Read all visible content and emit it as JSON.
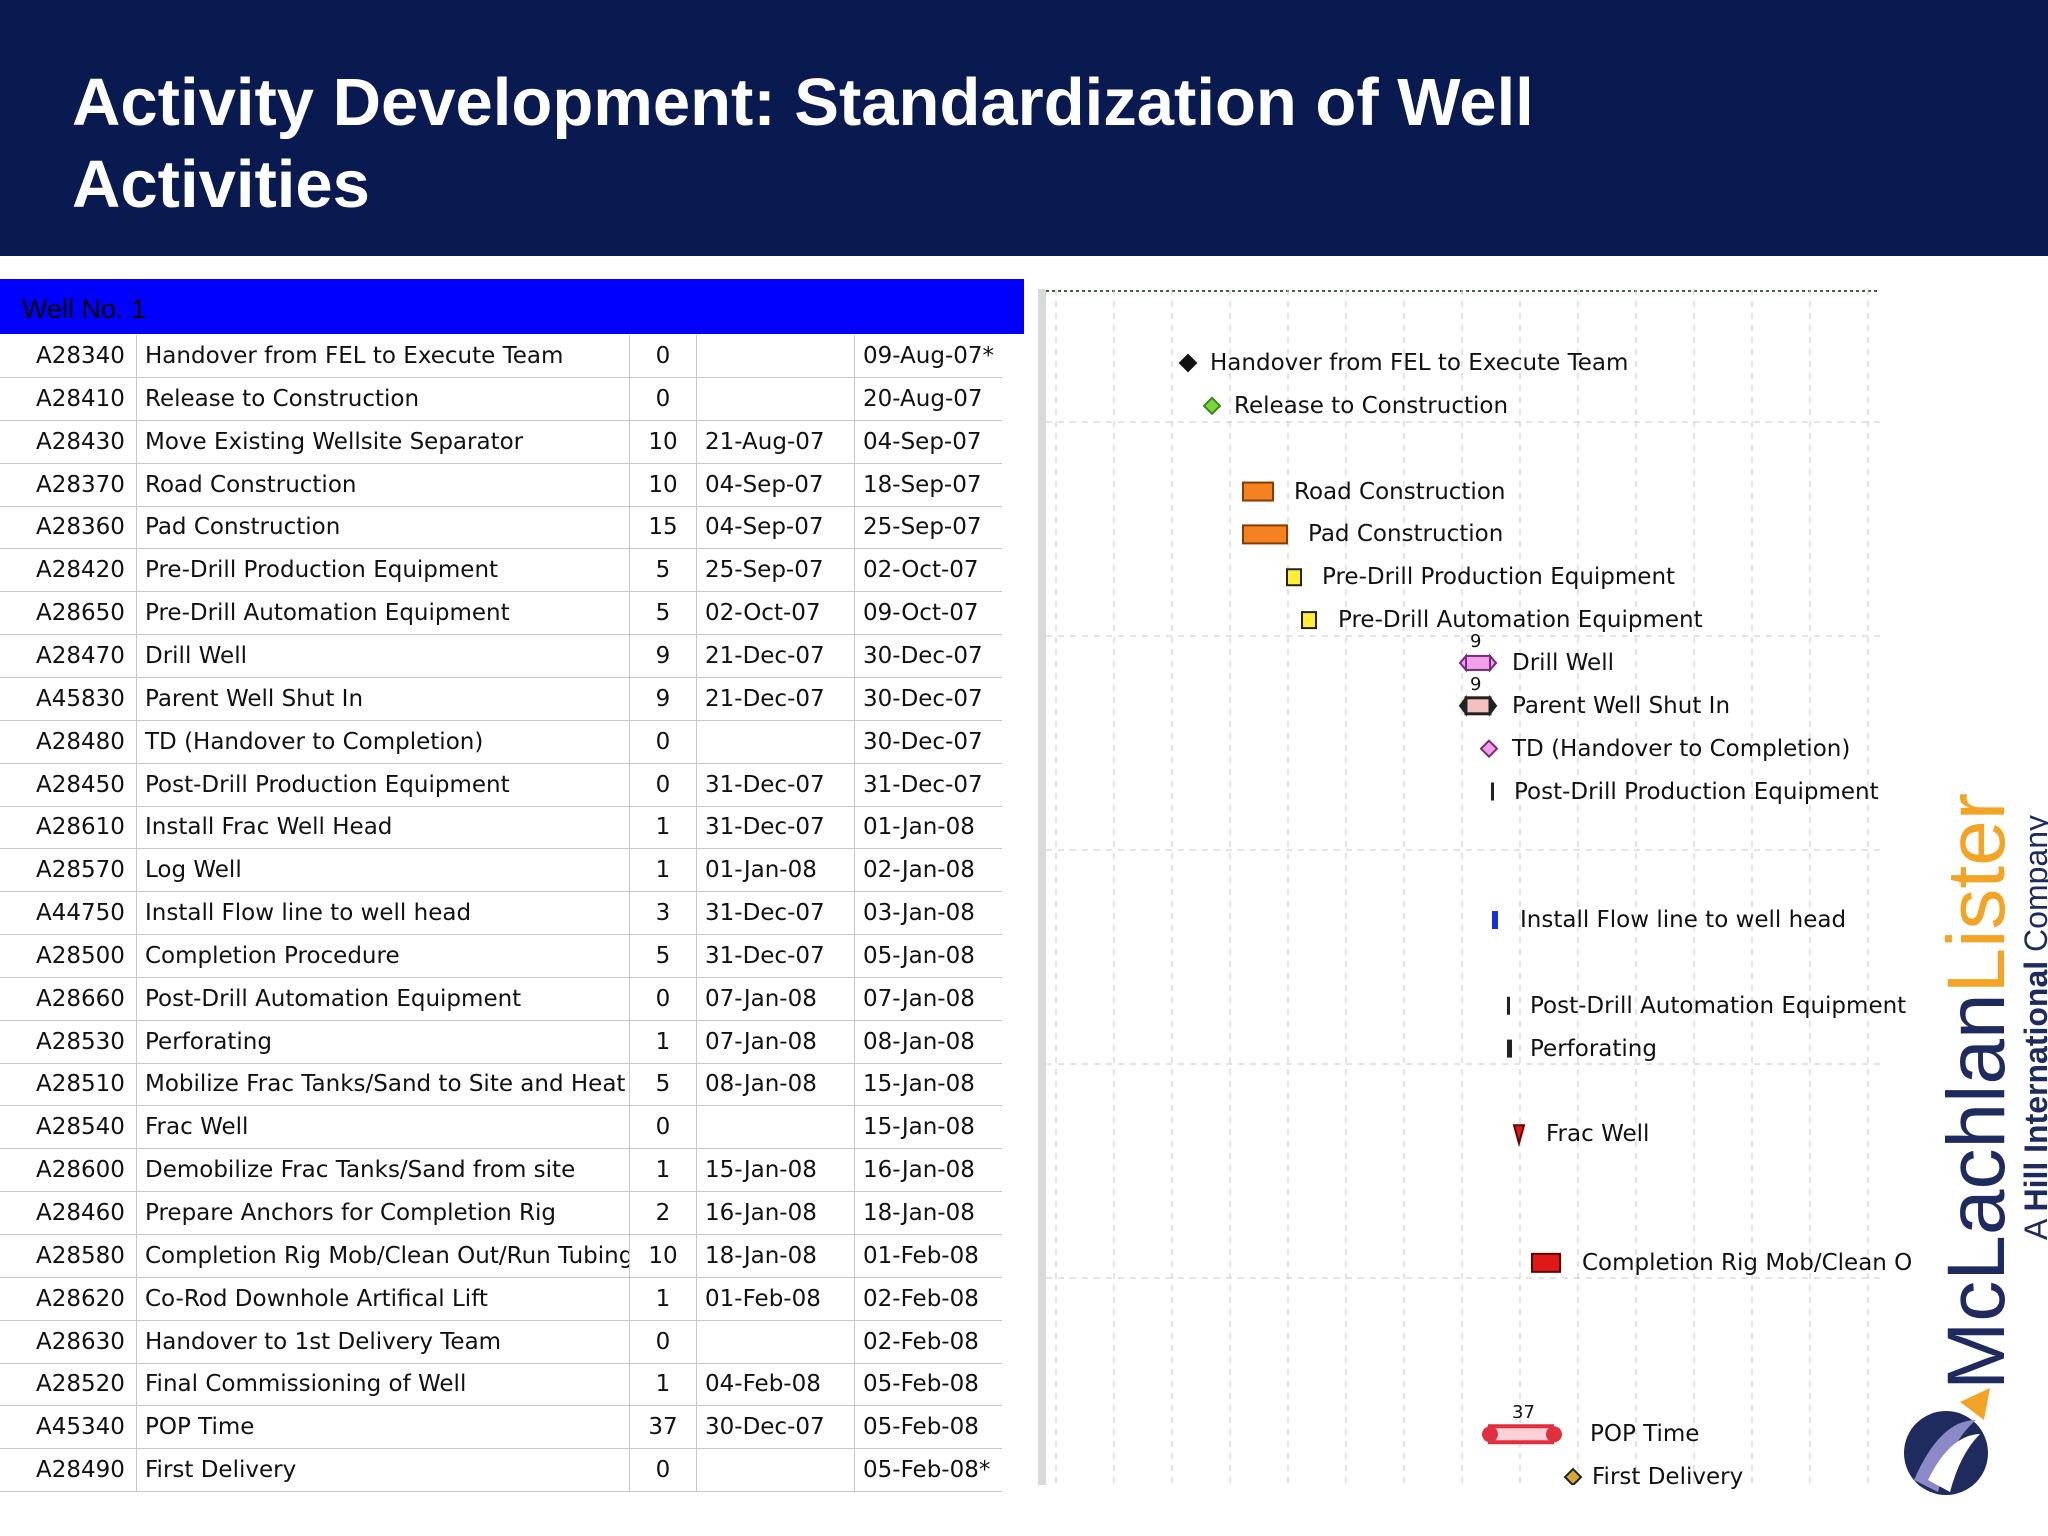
{
  "slide": {
    "title_line1": "Activity Development: Standardization of Well",
    "title_line2": "Activities"
  },
  "table": {
    "group_label": "Well No. 1",
    "rows": [
      {
        "id": "A28340",
        "name": "Handover from FEL to Execute Team",
        "dur": "0",
        "start": "",
        "finish": "09-Aug-07*"
      },
      {
        "id": "A28410",
        "name": "Release to Construction",
        "dur": "0",
        "start": "",
        "finish": "20-Aug-07"
      },
      {
        "id": "A28430",
        "name": "Move Existing Wellsite Separator",
        "dur": "10",
        "start": "21-Aug-07",
        "finish": "04-Sep-07"
      },
      {
        "id": "A28370",
        "name": "Road Construction",
        "dur": "10",
        "start": "04-Sep-07",
        "finish": "18-Sep-07"
      },
      {
        "id": "A28360",
        "name": "Pad Construction",
        "dur": "15",
        "start": "04-Sep-07",
        "finish": "25-Sep-07"
      },
      {
        "id": "A28420",
        "name": "Pre-Drill Production Equipment",
        "dur": "5",
        "start": "25-Sep-07",
        "finish": "02-Oct-07"
      },
      {
        "id": "A28650",
        "name": "Pre-Drill Automation Equipment",
        "dur": "5",
        "start": "02-Oct-07",
        "finish": "09-Oct-07"
      },
      {
        "id": "A28470",
        "name": "Drill Well",
        "dur": "9",
        "start": "21-Dec-07",
        "finish": "30-Dec-07"
      },
      {
        "id": "A45830",
        "name": "Parent Well Shut In",
        "dur": "9",
        "start": "21-Dec-07",
        "finish": "30-Dec-07"
      },
      {
        "id": "A28480",
        "name": "TD (Handover to Completion)",
        "dur": "0",
        "start": "",
        "finish": "30-Dec-07"
      },
      {
        "id": "A28450",
        "name": "Post-Drill Production Equipment",
        "dur": "0",
        "start": "31-Dec-07",
        "finish": "31-Dec-07"
      },
      {
        "id": "A28610",
        "name": "Install Frac Well Head",
        "dur": "1",
        "start": "31-Dec-07",
        "finish": "01-Jan-08"
      },
      {
        "id": "A28570",
        "name": "Log Well",
        "dur": "1",
        "start": "01-Jan-08",
        "finish": "02-Jan-08"
      },
      {
        "id": "A44750",
        "name": "Install Flow line to well head",
        "dur": "3",
        "start": "31-Dec-07",
        "finish": "03-Jan-08"
      },
      {
        "id": "A28500",
        "name": "Completion Procedure",
        "dur": "5",
        "start": "31-Dec-07",
        "finish": "05-Jan-08"
      },
      {
        "id": "A28660",
        "name": "Post-Drill Automation Equipment",
        "dur": "0",
        "start": "07-Jan-08",
        "finish": "07-Jan-08"
      },
      {
        "id": "A28530",
        "name": "Perforating",
        "dur": "1",
        "start": "07-Jan-08",
        "finish": "08-Jan-08"
      },
      {
        "id": "A28510",
        "name": "Mobilize Frac Tanks/Sand to Site and Heat ...",
        "dur": "5",
        "start": "08-Jan-08",
        "finish": "15-Jan-08"
      },
      {
        "id": "A28540",
        "name": "Frac Well",
        "dur": "0",
        "start": "",
        "finish": "15-Jan-08"
      },
      {
        "id": "A28600",
        "name": "Demobilize Frac Tanks/Sand from site",
        "dur": "1",
        "start": "15-Jan-08",
        "finish": "16-Jan-08"
      },
      {
        "id": "A28460",
        "name": "Prepare Anchors for Completion Rig",
        "dur": "2",
        "start": "16-Jan-08",
        "finish": "18-Jan-08"
      },
      {
        "id": "A28580",
        "name": "Completion Rig Mob/Clean Out/Run Tubing",
        "dur": "10",
        "start": "18-Jan-08",
        "finish": "01-Feb-08"
      },
      {
        "id": "A28620",
        "name": "Co-Rod Downhole Artifical Lift",
        "dur": "1",
        "start": "01-Feb-08",
        "finish": "02-Feb-08"
      },
      {
        "id": "A28630",
        "name": "Handover to 1st Delivery Team",
        "dur": "0",
        "start": "",
        "finish": "02-Feb-08"
      },
      {
        "id": "A28520",
        "name": "Final Commissioning of Well",
        "dur": "1",
        "start": "04-Feb-08",
        "finish": "05-Feb-08"
      },
      {
        "id": "A45340",
        "name": "POP Time",
        "dur": "37",
        "start": "30-Dec-07",
        "finish": "05-Feb-08"
      },
      {
        "id": "A28490",
        "name": "First Delivery",
        "dur": "0",
        "start": "",
        "finish": "05-Feb-08*"
      }
    ]
  },
  "gantt": {
    "labels": [
      {
        "row": 0,
        "text": "Handover from FEL to Execute Team"
      },
      {
        "row": 1,
        "text": "Release to Construction"
      },
      {
        "row": 3,
        "text": "Road Construction"
      },
      {
        "row": 4,
        "text": "Pad Construction"
      },
      {
        "row": 5,
        "text": "Pre-Drill Production Equipment"
      },
      {
        "row": 6,
        "text": "Pre-Drill Automation Equipment"
      },
      {
        "row": 7,
        "text": "Drill Well"
      },
      {
        "row": 8,
        "text": "Parent Well Shut In"
      },
      {
        "row": 9,
        "text": "TD (Handover to Completion)"
      },
      {
        "row": 10,
        "text": "Post-Drill Production Equipment"
      },
      {
        "row": 13,
        "text": "Install Flow line to well head"
      },
      {
        "row": 15,
        "text": "Post-Drill Automation Equipment"
      },
      {
        "row": 16,
        "text": "Perforating"
      },
      {
        "row": 18,
        "text": "Frac Well"
      },
      {
        "row": 21,
        "text": "Completion Rig Mob/Clean O"
      },
      {
        "row": 25,
        "text": "POP Time"
      },
      {
        "row": 26,
        "text": "First Delivery"
      }
    ],
    "duration_marks": [
      {
        "row": 7,
        "text": "9"
      },
      {
        "row": 8,
        "text": "9"
      },
      {
        "row": 25,
        "text": "37"
      }
    ],
    "colors": {
      "milestone_black": "#111111",
      "milestone_green": "#7cd63a",
      "bar_orange": "#f58220",
      "bar_yellow": "#ffee33",
      "bar_pink": "#f0a0e8",
      "bar_blue": "#1530d8",
      "bar_red": "#e01818",
      "pop_red": "#e03040"
    }
  },
  "logo": {
    "brand_part1": "McLachlan",
    "brand_part2": "Lister",
    "tagline_prefix": "A ",
    "tagline_bold": "Hill International",
    "tagline_suffix": " Company"
  }
}
